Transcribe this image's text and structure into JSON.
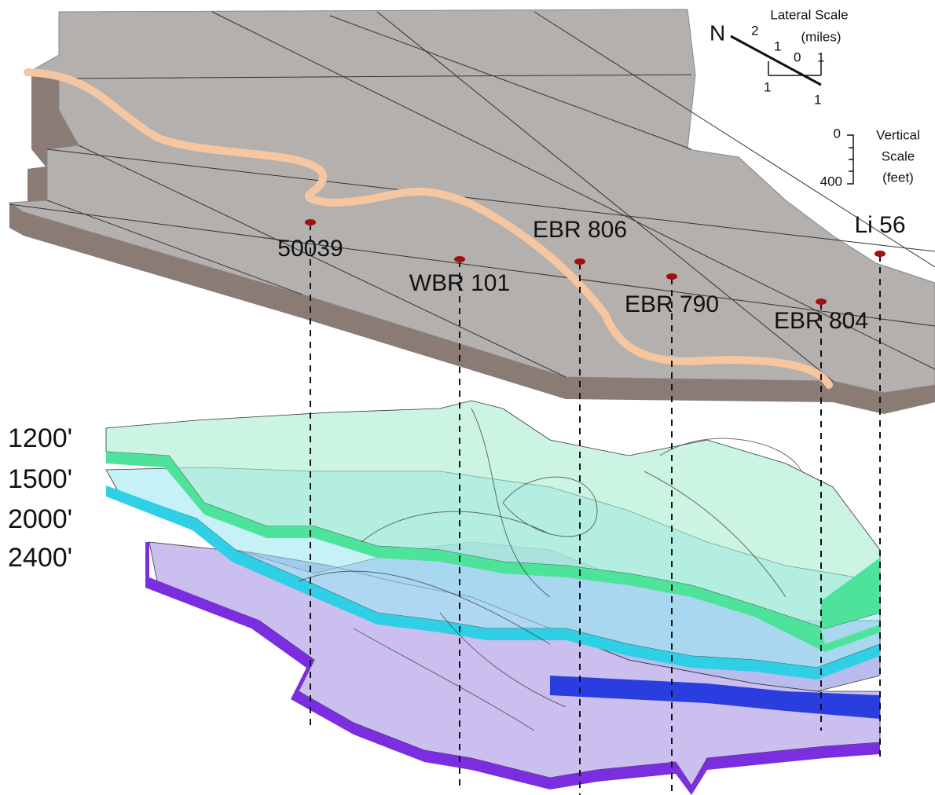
{
  "lateral_scale": {
    "title": "Lateral Scale",
    "unit": "(miles)",
    "north": "N",
    "labels": [
      "2",
      "1",
      "0",
      "1",
      "1",
      "1"
    ]
  },
  "vertical_scale": {
    "title": [
      "Vertical",
      "Scale",
      "(feet)"
    ],
    "ticks": [
      "0",
      "400"
    ]
  },
  "wells": [
    "50039",
    "WBR 101",
    "EBR 806",
    "EBR 790",
    "EBR 804",
    "Li 56"
  ],
  "depth_labels": [
    "1200'",
    "1500'",
    "2000'",
    "2400'"
  ]
}
